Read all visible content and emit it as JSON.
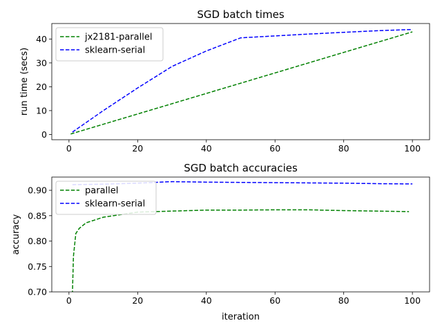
{
  "chart_data": [
    {
      "type": "line",
      "title": "SGD batch times",
      "xlabel": "",
      "ylabel": "run time (secs)",
      "xlim": [
        -5,
        105
      ],
      "ylim": [
        -2.2,
        46.5
      ],
      "xticks": [
        0,
        20,
        40,
        60,
        80,
        100
      ],
      "yticks": [
        0,
        10,
        20,
        30,
        40
      ],
      "grid": false,
      "legend_position": "upper-left",
      "series": [
        {
          "name": "jx2181-parallel",
          "color": "#008000",
          "linestyle": "dashed",
          "x": [
            0.5,
            100
          ],
          "y": [
            0.2,
            43.0
          ]
        },
        {
          "name": "sklearn-serial",
          "color": "#0000ff",
          "linestyle": "dashed",
          "x": [
            1,
            10,
            20,
            30,
            40,
            50,
            60,
            70,
            80,
            90,
            100
          ],
          "y": [
            1.0,
            10.0,
            19.5,
            28.5,
            35.0,
            40.5,
            41.3,
            42.1,
            42.8,
            43.5,
            44.0
          ]
        }
      ]
    },
    {
      "type": "line",
      "title": "SGD batch accuracies",
      "xlabel": "iteration",
      "ylabel": "accuracy",
      "xlim": [
        -5,
        105
      ],
      "ylim": [
        0.7,
        0.926
      ],
      "xticks": [
        0,
        20,
        40,
        60,
        80,
        100
      ],
      "yticks": [
        0.7,
        0.75,
        0.8,
        0.85,
        0.9
      ],
      "grid": false,
      "legend_position": "upper-left",
      "series": [
        {
          "name": "parallel",
          "color": "#008000",
          "linestyle": "dashed",
          "x": [
            1,
            1.3,
            2,
            3,
            5,
            10,
            20,
            30,
            40,
            50,
            60,
            70,
            80,
            90,
            99
          ],
          "y": [
            0.695,
            0.77,
            0.815,
            0.825,
            0.836,
            0.847,
            0.857,
            0.859,
            0.861,
            0.861,
            0.8615,
            0.8615,
            0.86,
            0.859,
            0.858
          ]
        },
        {
          "name": "sklearn-serial",
          "color": "#0000ff",
          "linestyle": "dashed",
          "x": [
            1,
            10,
            20,
            30,
            40,
            50,
            60,
            70,
            80,
            90,
            100
          ],
          "y": [
            0.911,
            0.912,
            0.914,
            0.917,
            0.916,
            0.9155,
            0.915,
            0.9145,
            0.914,
            0.913,
            0.9125
          ]
        }
      ]
    }
  ]
}
